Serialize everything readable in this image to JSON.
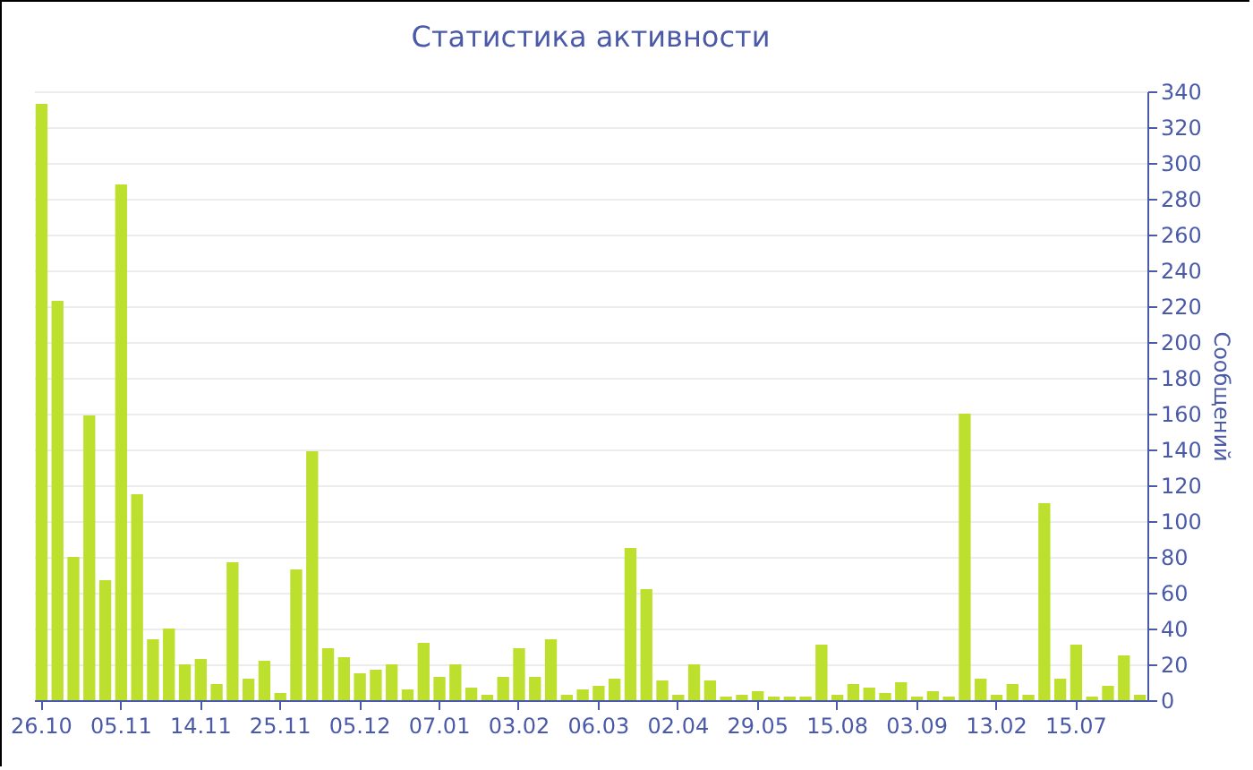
{
  "chart_data": {
    "type": "bar",
    "title": "Статистика активности",
    "ylabel": "Сообщений",
    "categories": [
      "26.10",
      null,
      null,
      null,
      null,
      "05.11",
      null,
      null,
      null,
      null,
      "14.11",
      null,
      null,
      null,
      null,
      "25.11",
      null,
      null,
      null,
      null,
      "05.12",
      null,
      null,
      null,
      null,
      "07.01",
      null,
      null,
      null,
      null,
      "03.02",
      null,
      null,
      null,
      null,
      "06.03",
      null,
      null,
      null,
      null,
      "02.04",
      null,
      null,
      null,
      null,
      "29.05",
      null,
      null,
      null,
      null,
      "15.08",
      null,
      null,
      null,
      null,
      "03.09",
      null,
      null,
      null,
      null,
      "13.02",
      null,
      null,
      null,
      null,
      "15.07",
      null,
      null,
      null,
      null
    ],
    "values": [
      333,
      223,
      80,
      159,
      67,
      288,
      115,
      34,
      40,
      20,
      23,
      9,
      77,
      12,
      22,
      4,
      73,
      139,
      29,
      24,
      15,
      17,
      20,
      6,
      32,
      13,
      20,
      7,
      3,
      13,
      29,
      13,
      34,
      3,
      6,
      8,
      12,
      85,
      62,
      11,
      3,
      20,
      11,
      2,
      3,
      5,
      2,
      2,
      2,
      31,
      3,
      9,
      7,
      4,
      10,
      2,
      5,
      2,
      160,
      12,
      3,
      9,
      3,
      110,
      12,
      31,
      2,
      8,
      25,
      3
    ],
    "color": "#bde02e",
    "ylim": [
      0,
      340
    ],
    "yticks": [
      0,
      20,
      40,
      60,
      80,
      100,
      120,
      140,
      160,
      180,
      200,
      220,
      240,
      260,
      280,
      300,
      320,
      340
    ],
    "grid": "y"
  }
}
